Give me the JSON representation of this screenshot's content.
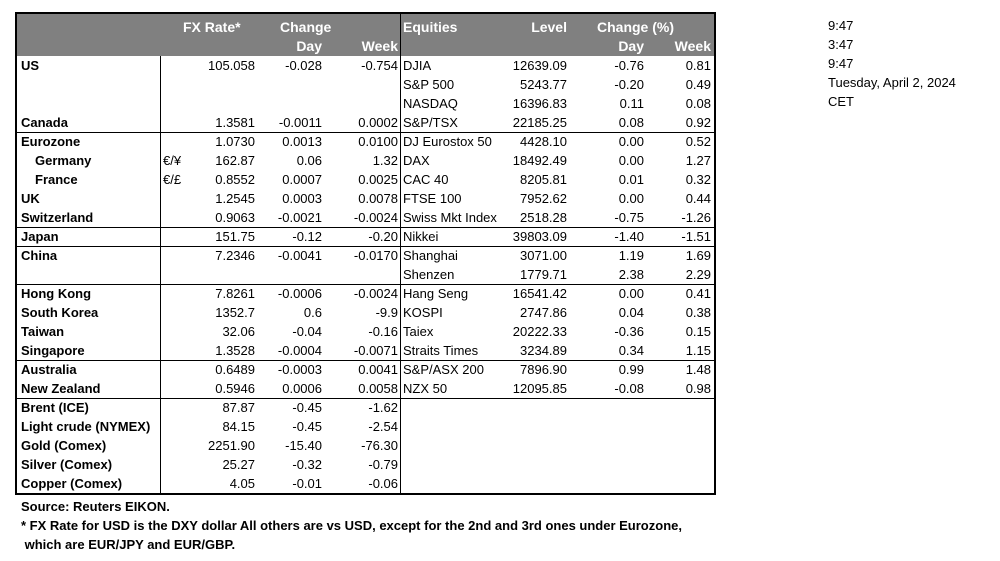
{
  "header": {
    "fx_rate": "FX Rate*",
    "change": "Change",
    "day": "Day",
    "week": "Week",
    "equities": "Equities",
    "level": "Level",
    "change_pct": "Change (%)",
    "eq_day": "Day",
    "eq_week": "Week"
  },
  "colors": {
    "header_bg": "#808080",
    "header_text": "#ffffff"
  },
  "groups": [
    [
      {
        "name": "US",
        "fx": "105.058",
        "day": "-0.028",
        "week": "-0.754",
        "eq": "DJIA",
        "level": "12639.09",
        "eday": "-0.76",
        "eweek": "0.81"
      },
      {
        "name": "",
        "eq": "S&P 500",
        "level": "5243.77",
        "eday": "-0.20",
        "eweek": "0.49"
      },
      {
        "name": "",
        "eq": "NASDAQ",
        "level": "16396.83",
        "eday": "0.11",
        "eweek": "0.08"
      },
      {
        "name": "Canada",
        "fx": "1.3581",
        "day": "-0.0011",
        "week": "0.0002",
        "eq": "S&P/TSX",
        "level": "22185.25",
        "eday": "0.08",
        "eweek": "0.92"
      }
    ],
    [
      {
        "name": "Eurozone",
        "fx": "1.0730",
        "day": "0.0013",
        "week": "0.0100",
        "eq": "DJ Eurostox 50",
        "level": "4428.10",
        "eday": "0.00",
        "eweek": "0.52"
      },
      {
        "name": "Germany",
        "indent": true,
        "sym": "€/¥",
        "fx": "162.87",
        "day": "0.06",
        "week": "1.32",
        "eq": "DAX",
        "level": "18492.49",
        "eday": "0.00",
        "eweek": "1.27"
      },
      {
        "name": "France",
        "indent": true,
        "sym": "€/£",
        "fx": "0.8552",
        "day": "0.0007",
        "week": "0.0025",
        "eq": "CAC 40",
        "level": "8205.81",
        "eday": "0.01",
        "eweek": "0.32"
      },
      {
        "name": "UK",
        "fx": "1.2545",
        "day": "0.0003",
        "week": "0.0078",
        "eq": "FTSE 100",
        "level": "7952.62",
        "eday": "0.00",
        "eweek": "0.44"
      },
      {
        "name": "Switzerland",
        "fx": "0.9063",
        "day": "-0.0021",
        "week": "-0.0024",
        "eq": "Swiss Mkt Index",
        "level": "2518.28",
        "eday": "-0.75",
        "eweek": "-1.26"
      }
    ],
    [
      {
        "name": "Japan",
        "fx": "151.75",
        "day": "-0.12",
        "week": "-0.20",
        "eq": "Nikkei",
        "level": "39803.09",
        "eday": "-1.40",
        "eweek": "-1.51"
      }
    ],
    [
      {
        "name": "China",
        "fx": "7.2346",
        "day": "-0.0041",
        "week": "-0.0170",
        "eq": "Shanghai",
        "level": "3071.00",
        "eday": "1.19",
        "eweek": "1.69"
      },
      {
        "name": "",
        "eq": "Shenzen",
        "level": "1779.71",
        "eday": "2.38",
        "eweek": "2.29"
      }
    ],
    [
      {
        "name": "Hong Kong",
        "fx": "7.8261",
        "day": "-0.0006",
        "week": "-0.0024",
        "eq": "Hang Seng",
        "level": "16541.42",
        "eday": "0.00",
        "eweek": "0.41"
      },
      {
        "name": "South Korea",
        "fx": "1352.7",
        "day": "0.6",
        "week": "-9.9",
        "eq": "KOSPI",
        "level": "2747.86",
        "eday": "0.04",
        "eweek": "0.38"
      },
      {
        "name": "Taiwan",
        "fx": "32.06",
        "day": "-0.04",
        "week": "-0.16",
        "eq": "Taiex",
        "level": "20222.33",
        "eday": "-0.36",
        "eweek": "0.15"
      },
      {
        "name": "Singapore",
        "fx": "1.3528",
        "day": "-0.0004",
        "week": "-0.0071",
        "eq": "Straits Times",
        "level": "3234.89",
        "eday": "0.34",
        "eweek": "1.15"
      }
    ],
    [
      {
        "name": "Australia",
        "fx": "0.6489",
        "day": "-0.0003",
        "week": "0.0041",
        "eq": "S&P/ASX  200",
        "level": "7896.90",
        "eday": "0.99",
        "eweek": "1.48"
      },
      {
        "name": "New Zealand",
        "fx": "0.5946",
        "day": "0.0006",
        "week": "0.0058",
        "eq": "NZX 50",
        "level": "12095.85",
        "eday": "-0.08",
        "eweek": "0.98"
      }
    ],
    [
      {
        "name": "Brent (ICE)",
        "fx": "87.87",
        "day": "-0.45",
        "week": "-1.62"
      },
      {
        "name": "Light crude (NYMEX)",
        "fx": "84.15",
        "day": "-0.45",
        "week": "-2.54"
      },
      {
        "name": "Gold (Comex)",
        "fx": "2251.90",
        "day": "-15.40",
        "week": "-76.30"
      },
      {
        "name": "Silver (Comex)",
        "fx": "25.27",
        "day": "-0.32",
        "week": "-0.79"
      },
      {
        "name": "Copper (Comex)",
        "fx": "4.05",
        "day": "-0.01",
        "week": "-0.06"
      }
    ]
  ],
  "side": [
    "9:47",
    "3:47",
    "9:47",
    "Tuesday, April 2, 2024",
    "CET"
  ],
  "footer": {
    "source": "Source:  Reuters EIKON.",
    "note1": "* FX Rate for USD is the DXY dollar  All others are vs USD, except for the 2nd and 3rd ones under Eurozone,",
    "note2": " which are EUR/JPY and EUR/GBP."
  }
}
